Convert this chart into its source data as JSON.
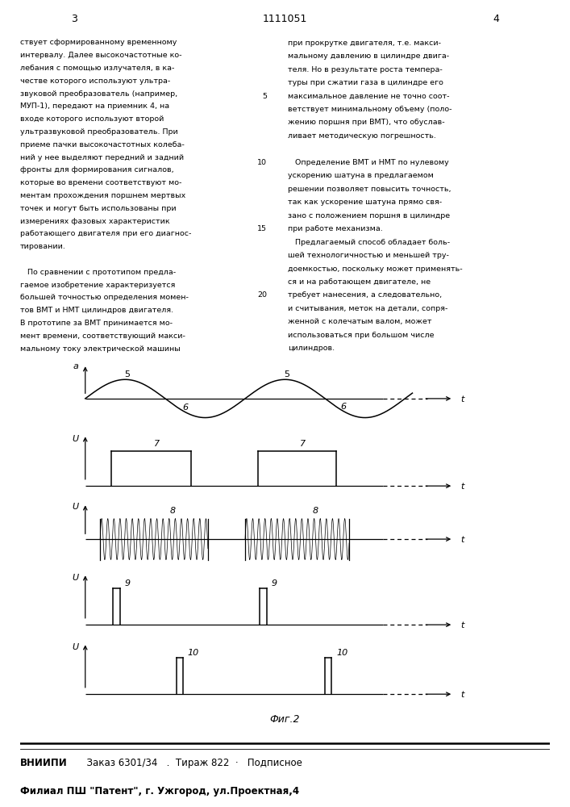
{
  "page_num_left": "3",
  "page_num_center": "1111051",
  "page_num_right": "4",
  "bg_color": "#ffffff",
  "text_color": "#000000",
  "text_left": [
    "ствует сформированному временному",
    "интервалу. Далее высокочастотные ко-",
    "лебания с помощью излучателя, в ка-",
    "честве которого используют ультра-",
    "звуковой преобразователь (например,",
    "МУП-1), передают на приемник 4, на",
    "входе которого используют второй",
    "ультразвуковой преобразователь. При",
    "приеме пачки высокочастотных колеба-",
    "ний у нее выделяют передний и задний",
    "фронты для формирования сигналов,",
    "которые во времени соответствуют мо-",
    "ментам прохождения поршнем мертвых",
    "точек и могут быть использованы при",
    "измерениях фазовых характеристик",
    "работающего двигателя при его диагнос-",
    "тировании.",
    "",
    "   По сравнении с прототипом предла-",
    "гаемое изобретение характеризуется",
    "большей точностью определения момен-",
    "тов ВМТ и НМТ цилиндров двигателя.",
    "В прототипе за ВМТ принимается мо-",
    "мент времени, соответствующий макси-",
    "мальному току электрической машины"
  ],
  "text_right": [
    "при прокрутке двигателя, т.е. макси-",
    "мальному давлению в цилиндре двига-",
    "теля. Но в результате роста темпера-",
    "туры при сжатии газа в цилиндре его",
    "максимальное давление не точно соот-",
    "ветствует минимальному объему (поло-",
    "жению поршня при ВМТ), что обуслав-",
    "ливает методическую погрешность.",
    "",
    "   Определение ВМТ и НМТ по нулевому",
    "ускорению шатуна в предлагаемом",
    "решении позволяет повысить точность,",
    "так как ускорение шатуна прямо свя-",
    "зано с положением поршня в цилиндре",
    "при работе механизма.",
    "   Предлагаемый способ обладает боль-",
    "шей технологичностью и меньшей тру-",
    "доемкостью, поскольку может применять-",
    "ся и на работающем двигателе, не",
    "требует нанесения, а следовательно,",
    "и считывания, меток на детали, сопря-",
    "женной с колечатым валом, может",
    "использоваться при большом числе",
    "цилиндров."
  ],
  "line_num_map": {
    "4": "5",
    "9": "10",
    "14": "15",
    "19": "20"
  },
  "fig_caption": "Фиг.2",
  "footer_bold": "ВНИИПИ",
  "footer_text1": "  Заказ 6301/34   .  Тираж 822  ·   Подписное",
  "footer_text2": "Филиал ПШ \"Патент\", г. Ужгород, ул.Проектная,4"
}
